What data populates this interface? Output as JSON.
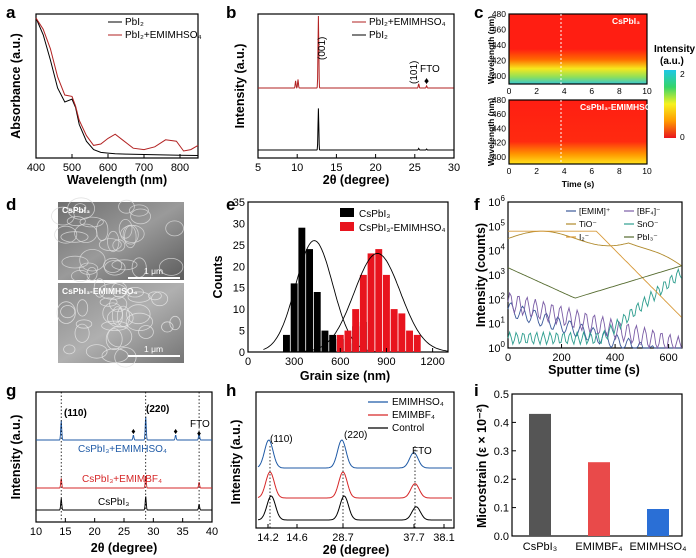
{
  "panels": {
    "a": {
      "letter": "a",
      "ylabel": "Absorbance (a.u.)",
      "xlabel": "Wavelength (nm)",
      "legend": [
        "PbI₂",
        "PbI₂+EMIMHSO₄"
      ]
    },
    "b": {
      "letter": "b",
      "ylabel": "Intensity (a.u.)",
      "xlabel": "2θ (degree)",
      "legend": [
        "PbI₂+EMIMHSO₄",
        "PbI₂"
      ],
      "annotations": [
        "(001)",
        "(101)",
        "FTO"
      ]
    },
    "c": {
      "letter": "c",
      "ylabel": "Wavelength (nm)",
      "xlabel": "Time (s)",
      "top_label": "CsPbI₃",
      "bottom_label": "CsPbI₃-EMIMHSO₄",
      "colorbar_title": "Intensity",
      "colorbar_unit": "(a.u.)",
      "colorbar_max": "2",
      "colorbar_min": "0"
    },
    "d": {
      "letter": "d",
      "top_label": "CsPbI₃",
      "bottom_label": "CsPbI₃-EMIMHSO₄",
      "scale_top": "1 μm",
      "scale_bottom": "1 μm"
    },
    "e": {
      "letter": "e",
      "ylabel": "Counts",
      "xlabel": "Grain size (nm)",
      "legend": [
        "CsPbI₃",
        "CsPbI₃-EMIMHSO₄"
      ]
    },
    "f": {
      "letter": "f",
      "ylabel": "Intensity (counts)",
      "xlabel": "Sputter time (s)",
      "legend": [
        "[EMIM]⁺",
        "[BF₄]⁻",
        "TiO⁻",
        "SnO⁻",
        "I₂⁻",
        "PbI₃⁻"
      ]
    },
    "g": {
      "letter": "g",
      "ylabel": "Intensity (a.u.)",
      "xlabel": "2θ (degree)",
      "annotations": [
        "(110)",
        "(220)",
        "FTO"
      ],
      "traces": [
        "CsPbI₃+EMIMHSO₄",
        "CsPbI₃+EMIMBF₄",
        "CsPbI₃"
      ]
    },
    "h": {
      "letter": "h",
      "ylabel": "Intensity (a.u.)",
      "xlabel": "2θ (degree)",
      "legend": [
        "EMIMHSO₄",
        "EMIMBF₄",
        "Control"
      ],
      "annotations": [
        "(110)",
        "(220)",
        "FTO"
      ]
    },
    "i": {
      "letter": "i",
      "ylabel": "Microstrain (ε × 10⁻²)"
    }
  },
  "chart_data": [
    {
      "panel": "a",
      "type": "line",
      "xlim": [
        400,
        850
      ],
      "xticks": [
        400,
        500,
        600,
        700,
        800
      ],
      "series": [
        {
          "name": "PbI₂",
          "color": "#000000",
          "x": [
            400,
            420,
            440,
            460,
            480,
            500,
            510,
            520,
            540,
            560,
            580,
            600,
            620,
            650,
            700,
            750,
            800,
            850
          ],
          "y": [
            1.0,
            0.88,
            0.7,
            0.5,
            0.4,
            0.42,
            0.36,
            0.24,
            0.12,
            0.06,
            0.04,
            0.035,
            0.03,
            0.028,
            0.025,
            0.022,
            0.02,
            0.018
          ]
        },
        {
          "name": "PbI₂+EMIMHSO₄",
          "color": "#b22222",
          "x": [
            400,
            420,
            440,
            460,
            480,
            500,
            510,
            520,
            540,
            560,
            580,
            600,
            620,
            640,
            670,
            700,
            730,
            760,
            790,
            810,
            830,
            850
          ],
          "y": [
            1.0,
            0.92,
            0.78,
            0.58,
            0.45,
            0.44,
            0.37,
            0.27,
            0.16,
            0.09,
            0.1,
            0.14,
            0.17,
            0.13,
            0.07,
            0.06,
            0.08,
            0.13,
            0.12,
            0.05,
            0.06,
            0.09
          ]
        }
      ]
    },
    {
      "panel": "b",
      "type": "line",
      "xlim": [
        5,
        30
      ],
      "xticks": [
        5,
        10,
        15,
        20,
        25,
        30
      ],
      "series": [
        {
          "name": "PbI₂+EMIMHSO₄",
          "color": "#b22222",
          "peaks": [
            [
              9.8,
              0.1
            ],
            [
              10.1,
              0.12
            ],
            [
              12.7,
              1.0
            ],
            [
              25.5,
              0.06
            ],
            [
              26.5,
              0.03
            ]
          ]
        },
        {
          "name": "PbI₂",
          "color": "#000000",
          "peaks": [
            [
              12.7,
              0.8
            ],
            [
              25.5,
              0.03
            ],
            [
              26.5,
              0.02
            ]
          ]
        }
      ]
    },
    {
      "panel": "c",
      "type": "heatmap",
      "xlim": [
        0,
        10
      ],
      "ylim": [
        390,
        480
      ],
      "xticks": [
        0,
        2,
        4,
        6,
        8,
        10
      ],
      "yticks": [
        400,
        420,
        440,
        460,
        480
      ],
      "colorbar": [
        0,
        2
      ],
      "marker_time": 3.8
    },
    {
      "panel": "e",
      "type": "bar",
      "xlim": [
        0,
        1300
      ],
      "ylim": [
        0,
        35
      ],
      "xticks": [
        0,
        300,
        600,
        900,
        1200
      ],
      "yticks": [
        0,
        5,
        10,
        15,
        20,
        25,
        30,
        35
      ],
      "series": [
        {
          "name": "CsPbI₃",
          "color": "#000000",
          "x": [
            250,
            300,
            350,
            400,
            450,
            500,
            550,
            600,
            650,
            700,
            750
          ],
          "values": [
            4,
            16,
            29,
            24,
            14,
            5,
            4,
            3,
            2,
            6,
            7
          ]
        },
        {
          "name": "CsPbI₃-EMIMHSO₄",
          "color": "#e8141e",
          "x": [
            600,
            650,
            700,
            750,
            800,
            850,
            900,
            950,
            1000,
            1050,
            1100
          ],
          "values": [
            4,
            5,
            10,
            18,
            23,
            24,
            18,
            10,
            9,
            5,
            4
          ]
        }
      ]
    },
    {
      "panel": "f",
      "type": "line",
      "xlim": [
        0,
        650
      ],
      "xticks": [
        0,
        200,
        400,
        600
      ],
      "ylog": true,
      "ylim_exp": [
        0,
        6
      ],
      "series": [
        {
          "name": "[EMIM]⁺",
          "color": "#3c5a9a"
        },
        {
          "name": "[BF₄]⁻",
          "color": "#7b5da6"
        },
        {
          "name": "TiO⁻",
          "color": "#b08a2c"
        },
        {
          "name": "SnO⁻",
          "color": "#2e9e8f"
        },
        {
          "name": "I₂⁻",
          "color": "#d89a3a"
        },
        {
          "name": "PbI₃⁻",
          "color": "#556b2f"
        }
      ]
    },
    {
      "panel": "g",
      "type": "line",
      "xlim": [
        10,
        40
      ],
      "xticks": [
        10,
        15,
        20,
        25,
        30,
        35,
        40
      ],
      "peaks_deg": [
        14.3,
        28.7,
        37.8
      ],
      "series": [
        {
          "name": "CsPbI₃+EMIMHSO₄",
          "color": "#1f5aa6"
        },
        {
          "name": "CsPbI₃+EMIMBF₄",
          "color": "#d62728"
        },
        {
          "name": "CsPbI₃",
          "color": "#000000"
        }
      ]
    },
    {
      "panel": "h",
      "type": "line",
      "xticks": [
        "14.2",
        "14.6",
        "28.7",
        "37.7",
        "38.1"
      ],
      "series": [
        {
          "name": "EMIMHSO₄",
          "color": "#1f5aa6"
        },
        {
          "name": "EMIMBF₄",
          "color": "#d62728"
        },
        {
          "name": "Control",
          "color": "#000000"
        }
      ]
    },
    {
      "panel": "i",
      "type": "bar",
      "categories": [
        "CsPbI₃",
        "EMIMBF₄",
        "EMIMHSO₄"
      ],
      "values": [
        0.43,
        0.26,
        0.095
      ],
      "colors": [
        "#555555",
        "#e94a4a",
        "#2a6fd6"
      ],
      "ylim": [
        0,
        0.5
      ],
      "yticks": [
        "0.0",
        "0.1",
        "0.2",
        "0.3",
        "0.4",
        "0.5"
      ]
    }
  ]
}
